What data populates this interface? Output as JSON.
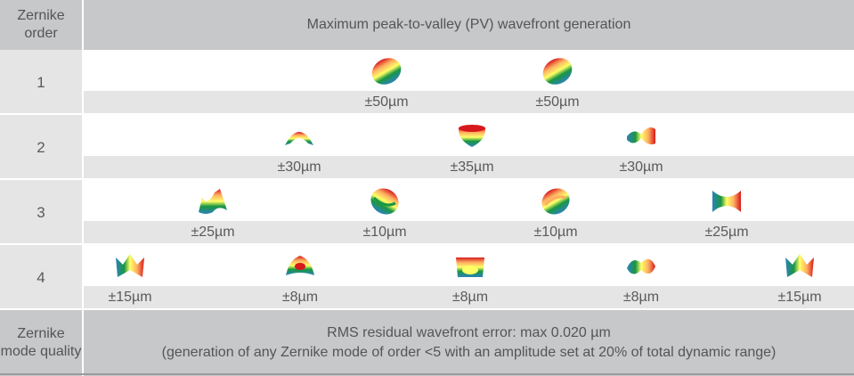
{
  "header": {
    "order_label": "Zernike order",
    "title": "Maximum peak-to-valley (PV) wavefront generation"
  },
  "rows": [
    {
      "order": "1",
      "modes": [
        {
          "amp": "±50µm",
          "icon": "tilt-wavefront-icon"
        },
        {
          "amp": "±50µm",
          "icon": "tip-wavefront-icon"
        }
      ]
    },
    {
      "order": "2",
      "modes": [
        {
          "amp": "±30µm",
          "icon": "astigmatism-wavefront-icon"
        },
        {
          "amp": "±35µm",
          "icon": "defocus-wavefront-icon"
        },
        {
          "amp": "±30µm",
          "icon": "oblique-astigmatism-wavefront-icon"
        }
      ]
    },
    {
      "order": "3",
      "modes": [
        {
          "amp": "±25µm",
          "icon": "trefoil-wavefront-icon"
        },
        {
          "amp": "±10µm",
          "icon": "coma-wavefront-icon"
        },
        {
          "amp": "±10µm",
          "icon": "coma-wavefront-icon"
        },
        {
          "amp": "±25µm",
          "icon": "trefoil-wavefront-icon"
        }
      ]
    },
    {
      "order": "4",
      "modes": [
        {
          "amp": "±15µm",
          "icon": "tetrafoil-wavefront-icon"
        },
        {
          "amp": "±8µm",
          "icon": "secondary-astigmatism-wavefront-icon"
        },
        {
          "amp": "±8µm",
          "icon": "spherical-aberration-wavefront-icon"
        },
        {
          "amp": "±8µm",
          "icon": "secondary-astigmatism-wavefront-icon"
        },
        {
          "amp": "±15µm",
          "icon": "tetrafoil-wavefront-icon"
        }
      ]
    }
  ],
  "footer": {
    "quality_label": "Zernike mode quality",
    "rms_line": "RMS residual wavefront error: max 0.020 µm",
    "note_line": "(generation of any Zernike mode of order <5 with an amplitude set at 20% of total dynamic range)"
  },
  "colors": {
    "header_bg": "#c7c8ca",
    "row_grey": "#e5e5e6",
    "text": "#555555"
  }
}
